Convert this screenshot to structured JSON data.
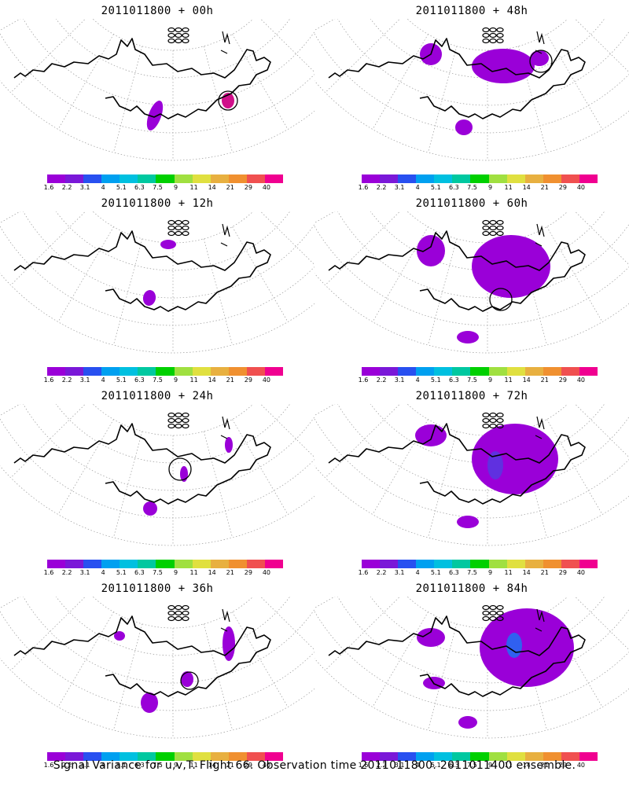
{
  "panels": [
    {
      "title": "2011011800 + 00h",
      "stage": 0
    },
    {
      "title": "2011011800 + 48h",
      "stage": 4
    },
    {
      "title": "2011011800 + 12h",
      "stage": 1
    },
    {
      "title": "2011011800 + 60h",
      "stage": 5
    },
    {
      "title": "2011011800 + 24h",
      "stage": 2
    },
    {
      "title": "2011011800 + 72h",
      "stage": 6
    },
    {
      "title": "2011011800 + 36h",
      "stage": 3
    },
    {
      "title": "2011011800 + 84h",
      "stage": 7
    }
  ],
  "colorbar": {
    "labels": [
      "1.6",
      "2.2",
      "3.1",
      "4",
      "5.1",
      "6.3",
      "7.5",
      "9",
      "11",
      "14",
      "21",
      "29",
      "40"
    ],
    "colors": [
      "#9a00d8",
      "#7a18d8",
      "#2850f0",
      "#00a0f0",
      "#00c0e0",
      "#00c8a0",
      "#00d000",
      "#a0e040",
      "#e0e040",
      "#e8b040",
      "#f09030",
      "#f05050",
      "#f00090"
    ]
  },
  "footer": "Signal Variance for u,v,T. Flight 66. Observation time 2011011800. 2011011400 ensemble."
}
